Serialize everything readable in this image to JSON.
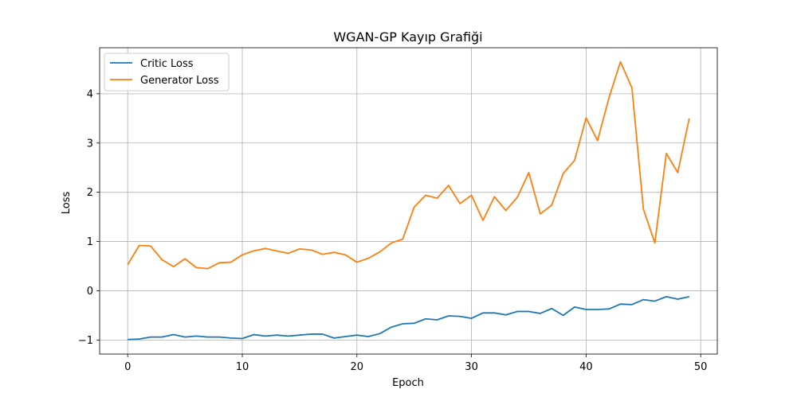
{
  "chart_data": {
    "type": "line",
    "title": "WGAN-GP Kayıp Grafiği",
    "xlabel": "Epoch",
    "ylabel": "Loss",
    "xlim": [
      -2.45,
      51.45
    ],
    "ylim": [
      -1.285,
      4.935
    ],
    "x_ticks": [
      0,
      10,
      20,
      30,
      40,
      50
    ],
    "y_ticks": [
      -1,
      0,
      1,
      2,
      3,
      4
    ],
    "x_tick_labels": [
      "0",
      "10",
      "20",
      "30",
      "40",
      "50"
    ],
    "y_tick_labels": [
      "−1",
      "0",
      "1",
      "2",
      "3",
      "4"
    ],
    "grid": true,
    "legend_position": "top-left",
    "x": [
      0,
      1,
      2,
      3,
      4,
      5,
      6,
      7,
      8,
      9,
      10,
      11,
      12,
      13,
      14,
      15,
      16,
      17,
      18,
      19,
      20,
      21,
      22,
      23,
      24,
      25,
      26,
      27,
      28,
      29,
      30,
      31,
      32,
      33,
      34,
      35,
      36,
      37,
      38,
      39,
      40,
      41,
      42,
      43,
      44,
      45,
      46,
      47,
      48,
      49
    ],
    "series": [
      {
        "name": "Critic Loss",
        "color": "#1f77b4",
        "values": [
          -0.99,
          -0.98,
          -0.94,
          -0.94,
          -0.89,
          -0.94,
          -0.92,
          -0.94,
          -0.94,
          -0.96,
          -0.97,
          -0.89,
          -0.92,
          -0.9,
          -0.92,
          -0.9,
          -0.88,
          -0.88,
          -0.96,
          -0.93,
          -0.9,
          -0.93,
          -0.87,
          -0.74,
          -0.67,
          -0.66,
          -0.57,
          -0.59,
          -0.51,
          -0.52,
          -0.56,
          -0.45,
          -0.45,
          -0.49,
          -0.42,
          -0.42,
          -0.46,
          -0.36,
          -0.5,
          -0.33,
          -0.38,
          -0.38,
          -0.37,
          -0.27,
          -0.28,
          -0.18,
          -0.21,
          -0.12,
          -0.17,
          -0.12
        ]
      },
      {
        "name": "Generator Loss",
        "color": "#ff7f0e",
        "values": [
          0.53,
          0.92,
          0.91,
          0.63,
          0.49,
          0.65,
          0.47,
          0.45,
          0.57,
          0.58,
          0.73,
          0.81,
          0.86,
          0.81,
          0.76,
          0.85,
          0.83,
          0.74,
          0.78,
          0.73,
          0.58,
          0.66,
          0.79,
          0.97,
          1.05,
          1.7,
          1.94,
          1.88,
          2.14,
          1.77,
          1.94,
          1.43,
          1.91,
          1.63,
          1.9,
          2.4,
          1.56,
          1.74,
          2.38,
          2.65,
          3.51,
          3.05,
          3.92,
          4.65,
          4.12,
          1.66,
          0.97,
          2.79,
          2.4,
          3.5
        ]
      }
    ]
  }
}
